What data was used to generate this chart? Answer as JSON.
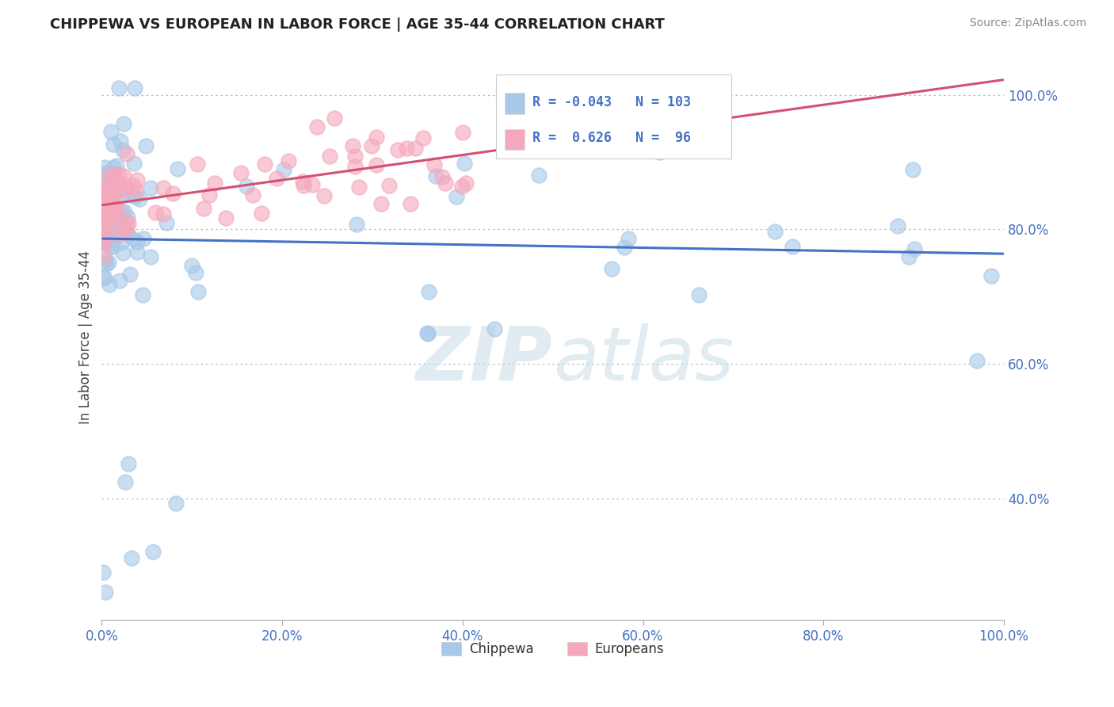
{
  "title": "CHIPPEWA VS EUROPEAN IN LABOR FORCE | AGE 35-44 CORRELATION CHART",
  "source": "Source: ZipAtlas.com",
  "ylabel": "In Labor Force | Age 35-44",
  "xlim": [
    0.0,
    1.0
  ],
  "ylim": [
    0.22,
    1.06
  ],
  "chippewa_R": -0.043,
  "chippewa_N": 103,
  "european_R": 0.626,
  "european_N": 96,
  "chippewa_color": "#a8c8e8",
  "european_color": "#f5a8bc",
  "chippewa_line_color": "#4472c4",
  "european_line_color": "#d45070",
  "background_color": "#ffffff",
  "ytick_positions": [
    0.4,
    0.6,
    0.8,
    1.0
  ],
  "ytick_labels": [
    "40.0%",
    "60.0%",
    "80.0%",
    "100.0%"
  ],
  "xtick_positions": [
    0.0,
    0.2,
    0.4,
    0.6,
    0.8,
    1.0
  ],
  "xtick_labels": [
    "0.0%",
    "20.0%",
    "40.0%",
    "60.0%",
    "80.0%",
    "100.0%"
  ],
  "tick_color": "#4472c4",
  "watermark_color": "#c8dce8"
}
